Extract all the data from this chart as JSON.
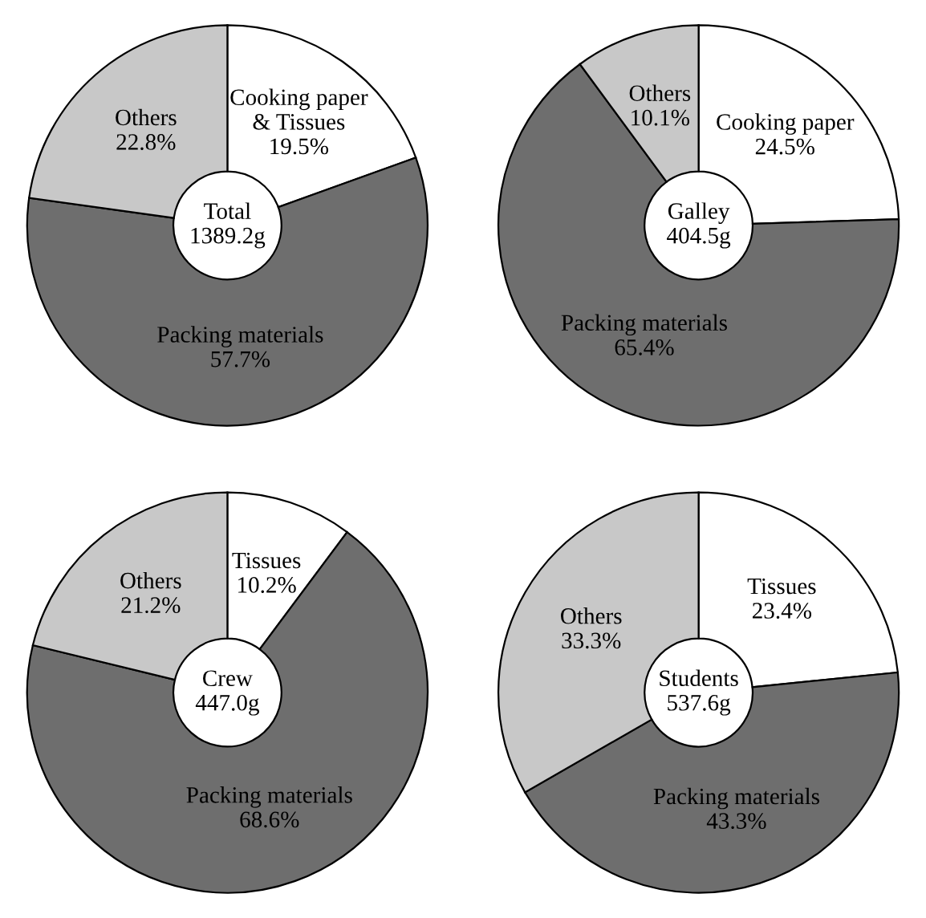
{
  "chart_data": [
    {
      "type": "donut",
      "categories": [
        "Cooking paper\n& Tissues",
        "Packing materials",
        "Others"
      ],
      "values": [
        19.5,
        57.7,
        22.8
      ],
      "value_labels": [
        "19.5%",
        "57.7%",
        "22.8%"
      ],
      "colors": [
        "#ffffff",
        "#6e6e6e",
        "#c8c8c8"
      ],
      "annotations": [
        "Total\n1389.2g"
      ]
    },
    {
      "type": "donut",
      "categories": [
        "Cooking paper",
        "Packing materials",
        "Others"
      ],
      "values": [
        24.5,
        65.4,
        10.1
      ],
      "value_labels": [
        "24.5%",
        "65.4%",
        "10.1%"
      ],
      "colors": [
        "#ffffff",
        "#6e6e6e",
        "#c8c8c8"
      ],
      "annotations": [
        "Galley\n404.5g"
      ]
    },
    {
      "type": "donut",
      "categories": [
        "Tissues",
        "Packing materials",
        "Others"
      ],
      "values": [
        10.2,
        68.6,
        21.2
      ],
      "value_labels": [
        "10.2%",
        "68.6%",
        "21.2%"
      ],
      "colors": [
        "#ffffff",
        "#6e6e6e",
        "#c8c8c8"
      ],
      "annotations": [
        "Crew\n447.0g"
      ]
    },
    {
      "type": "donut",
      "categories": [
        "Tissues",
        "Packing materials",
        "Others"
      ],
      "values": [
        23.4,
        43.3,
        33.3
      ],
      "value_labels": [
        "23.4%",
        "43.3%",
        "33.3%"
      ],
      "colors": [
        "#ffffff",
        "#6e6e6e",
        "#c8c8c8"
      ],
      "annotations": [
        "Students\n537.6g"
      ]
    }
  ]
}
